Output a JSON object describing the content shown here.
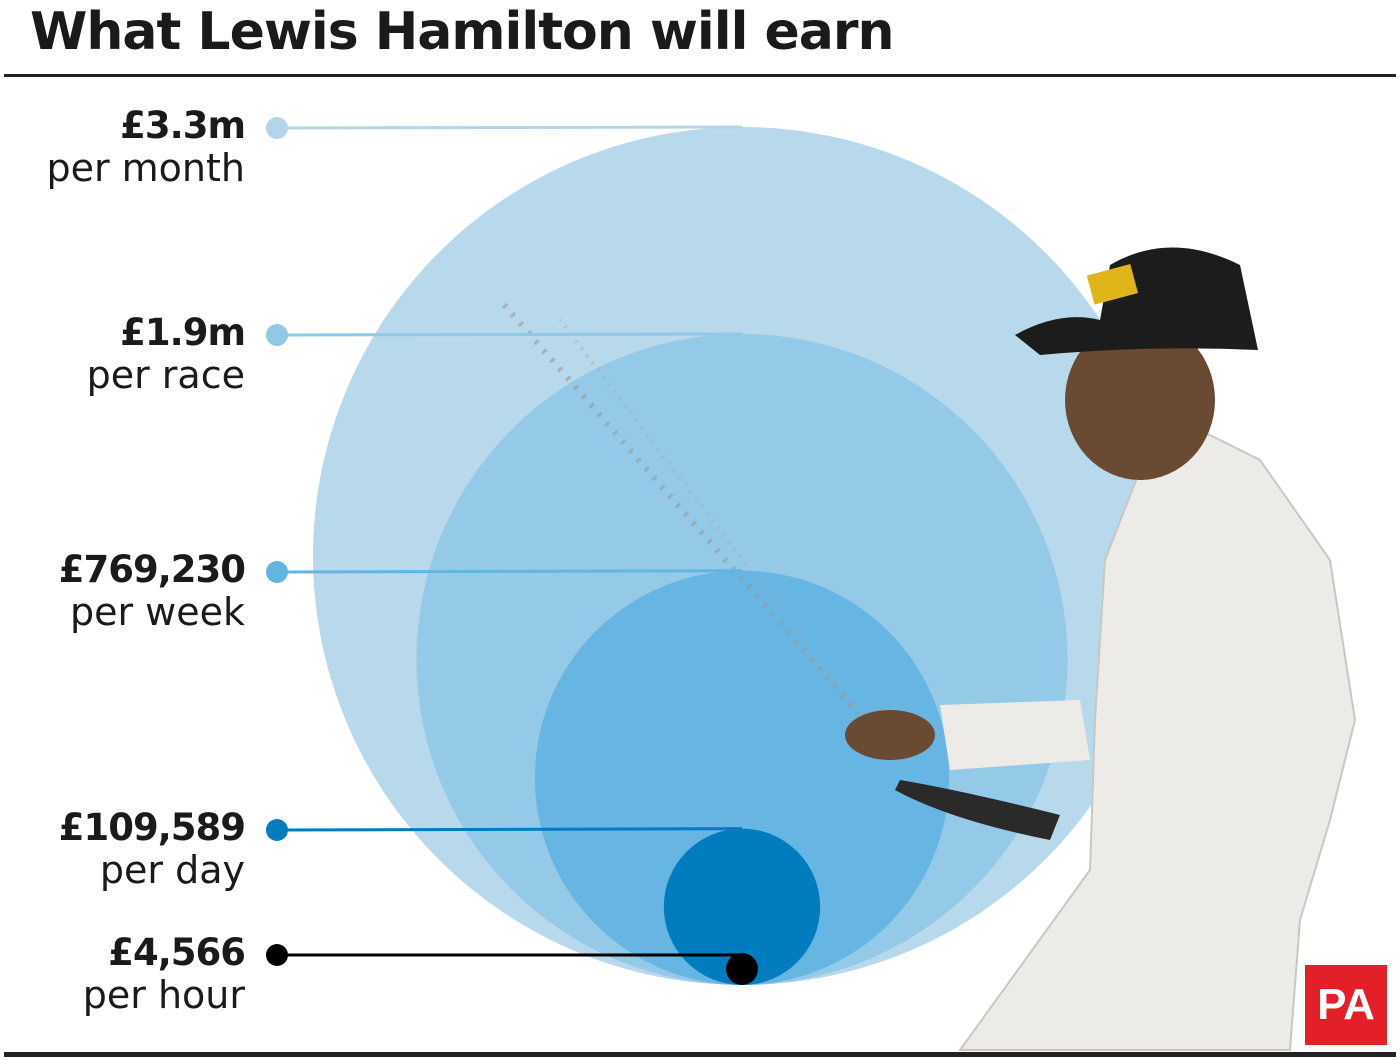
{
  "title": "What Lewis Hamilton will earn",
  "chart_data": {
    "type": "bubble",
    "title": "What Lewis Hamilton will earn",
    "currency": "GBP",
    "items": [
      {
        "amount_label": "£3.3m",
        "period": "per month",
        "value": 3300000,
        "color": "#b3d5ea"
      },
      {
        "amount_label": "£1.9m",
        "period": "per race",
        "value": 1900000,
        "color": "#91c7e7"
      },
      {
        "amount_label": "£769,230",
        "period": "per week",
        "value": 769230,
        "color": "#63b4e1"
      },
      {
        "amount_label": "£109,589",
        "period": "per day",
        "value": 109589,
        "color": "#007cbf"
      },
      {
        "amount_label": "£4,566",
        "period": "per hour",
        "value": 4566,
        "color": "#000000"
      }
    ]
  },
  "logo": "PA"
}
